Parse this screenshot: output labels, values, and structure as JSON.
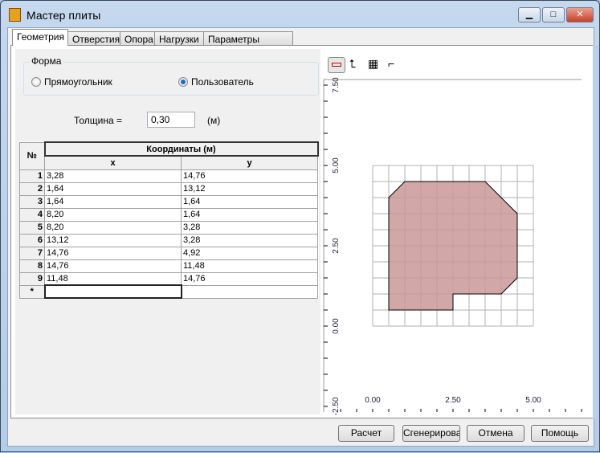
{
  "window": {
    "title": "Мастер плиты",
    "minimize": "▁",
    "maximize": "□",
    "close": "✕"
  },
  "tabs": [
    "Геометрия",
    "Отверстия",
    "Опора",
    "Нагрузки",
    "Параметры расчета"
  ],
  "shape": {
    "label": "Форма",
    "options": [
      {
        "label": "Прямоугольник",
        "selected": false
      },
      {
        "label": "Пользователь",
        "selected": true
      }
    ]
  },
  "thickness": {
    "label": "Толщина =",
    "value": "0,30",
    "unit": "(м)"
  },
  "table": {
    "col_num": "№",
    "group_header": "Координаты (м)",
    "col_x": "x",
    "col_y": "y",
    "rows": [
      [
        "1",
        "3,28",
        "14,76"
      ],
      [
        "2",
        "1,64",
        "13,12"
      ],
      [
        "3",
        "1,64",
        "1,64"
      ],
      [
        "4",
        "8,20",
        "1,64"
      ],
      [
        "5",
        "8,20",
        "3,28"
      ],
      [
        "6",
        "13,12",
        "3,28"
      ],
      [
        "7",
        "14,76",
        "4,92"
      ],
      [
        "8",
        "14,76",
        "11,48"
      ],
      [
        "9",
        "11,48",
        "14,76"
      ]
    ],
    "new_row_marker": "*"
  },
  "plot": {
    "toolbar": [
      "ruler-icon",
      "axes-icon",
      "grid-icon",
      "select-icon"
    ],
    "x_ticks": [
      "0.00",
      "2.50",
      "5.00"
    ],
    "y_ticks": [
      "-2.50",
      "0.00",
      "2.50",
      "5.00",
      "7.50"
    ],
    "fill": "#c99899"
  },
  "buttons": {
    "calc": "Расчет",
    "generate": "Сгенерировать",
    "cancel": "Отмена",
    "help": "Помощь"
  }
}
